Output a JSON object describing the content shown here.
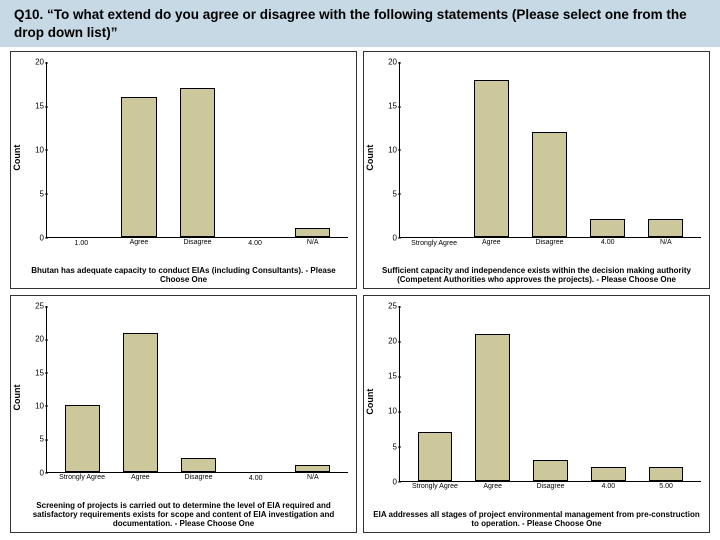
{
  "header_bg": "#c6d9e4",
  "header_text": "Q10. “To what extend do you agree or disagree with the following statements (Please select one from the drop down list)”",
  "bar_color": "#cdc89b",
  "bar_border": "#000000",
  "panels": [
    {
      "ylabel": "Count",
      "ymax": 20,
      "ytick_step": 5,
      "categories": [
        "1.00",
        "Agree",
        "Disagree",
        "4.00",
        "N/A"
      ],
      "values": [
        0,
        16,
        17,
        0,
        1
      ],
      "caption": "Bhutan has adequate capacity to conduct EIAs (including Consultants). - Please Choose One"
    },
    {
      "ylabel": "Count",
      "ymax": 20,
      "ytick_step": 5,
      "categories": [
        "Strongly Agree",
        "Agree",
        "Disagree",
        "4.00",
        "N/A"
      ],
      "values": [
        0,
        18,
        12,
        2,
        2
      ],
      "caption": "Sufficient capacity and independence exists within the decision making authority (Competent Authorities who approves the projects). - Please Choose One"
    },
    {
      "ylabel": "Count",
      "ymax": 25,
      "ytick_step": 5,
      "categories": [
        "Strongly Agree",
        "Agree",
        "Disagree",
        "4.00",
        "N/A"
      ],
      "values": [
        10,
        21,
        2,
        0,
        1
      ],
      "caption": "Screening of projects is carried out to determine the level of EIA required and satisfactory requirements exists for scope and content of EIA investigation and documentation. - Please Choose One"
    },
    {
      "ylabel": "Count",
      "ymax": 25,
      "ytick_step": 5,
      "categories": [
        "Strongly Agree",
        "Agree",
        "Disagree",
        "4.00",
        "5.00"
      ],
      "values": [
        7,
        21,
        3,
        2,
        2
      ],
      "caption": "EIA addresses all stages of project environmental management from pre-construction to operation. - Please Choose One"
    }
  ]
}
